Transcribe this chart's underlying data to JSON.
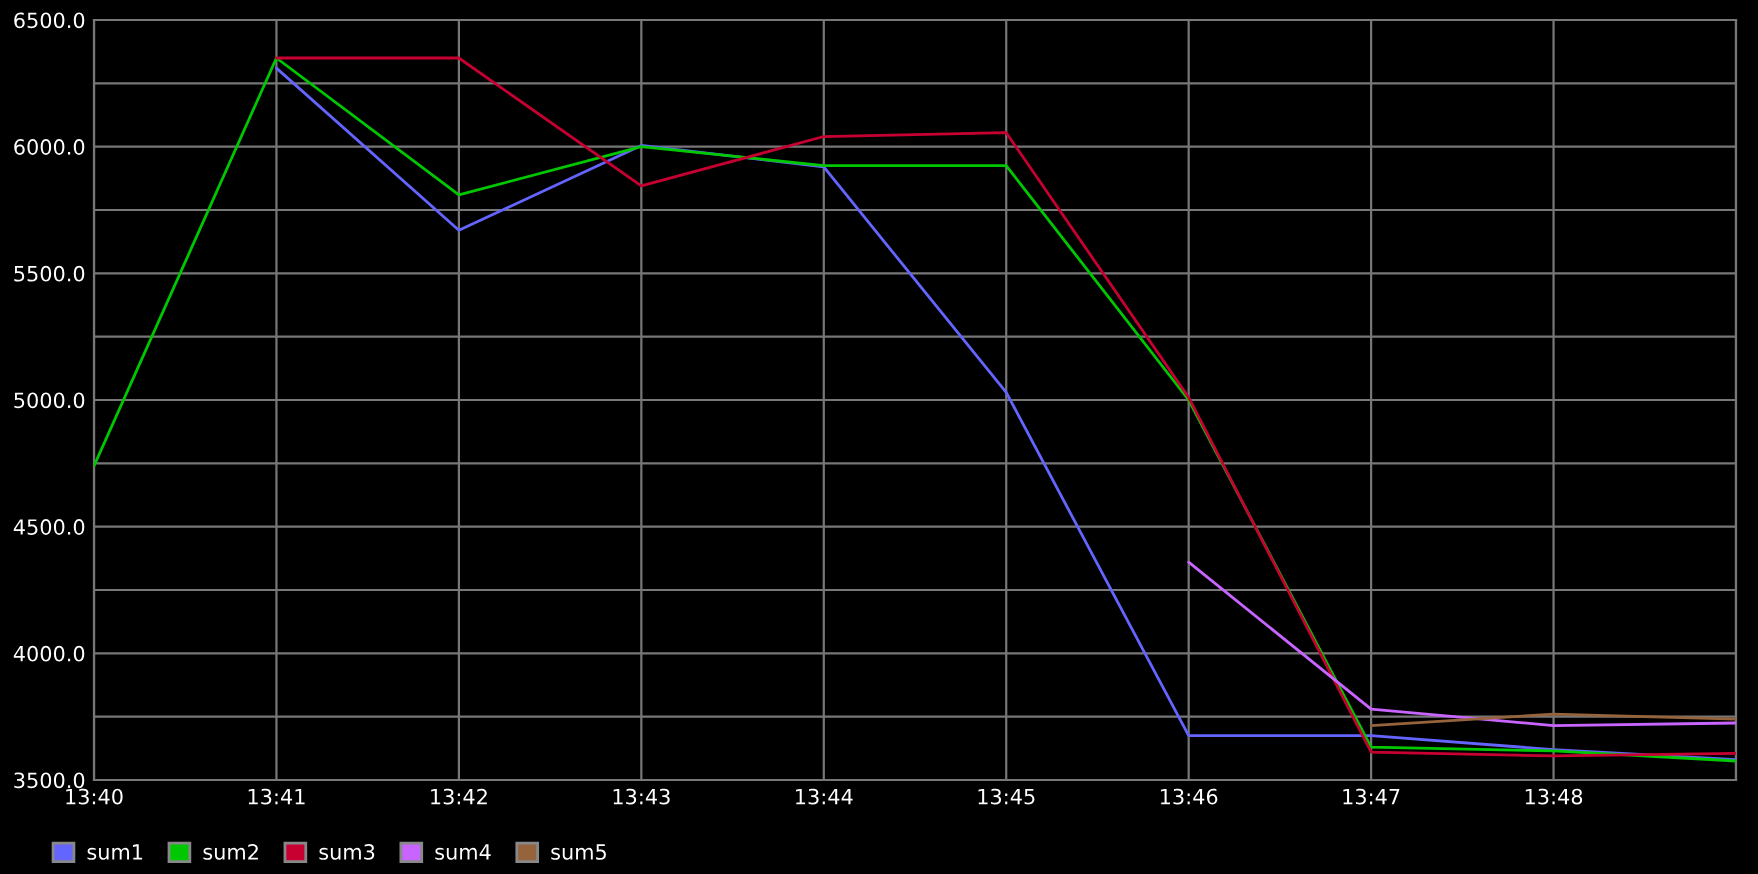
{
  "chart_data": {
    "type": "line",
    "categories": [
      "13:40",
      "13:41",
      "13:42",
      "13:43",
      "13:44",
      "13:45",
      "13:46",
      "13:47",
      "13:48",
      null
    ],
    "series": [
      {
        "name": "sum1",
        "color": "#6464ff",
        "values": [
          null,
          6310,
          5670,
          6005,
          5920,
          5030,
          3675,
          3675,
          3620,
          3580
        ]
      },
      {
        "name": "sum2",
        "color": "#00c800",
        "values": [
          4740,
          6350,
          5810,
          6000,
          5925,
          5925,
          5000,
          3630,
          3615,
          3575
        ]
      },
      {
        "name": "sum3",
        "color": "#c80032",
        "values": [
          null,
          6350,
          6350,
          5845,
          6040,
          6055,
          5010,
          3610,
          3595,
          3605
        ]
      },
      {
        "name": "sum4",
        "color": "#c864ff",
        "values": [
          null,
          null,
          null,
          null,
          null,
          null,
          4360,
          3780,
          3715,
          3725
        ]
      },
      {
        "name": "sum5",
        "color": "#96643c",
        "values": [
          null,
          null,
          null,
          null,
          null,
          null,
          null,
          3715,
          3760,
          3740
        ]
      }
    ],
    "ylim": [
      3500,
      6500
    ],
    "yticks": [
      {
        "value": 3500,
        "label": "3500.0"
      },
      {
        "value": 3750,
        "label": null
      },
      {
        "value": 4000,
        "label": "4000.0"
      },
      {
        "value": 4250,
        "label": null
      },
      {
        "value": 4500,
        "label": "4500.0"
      },
      {
        "value": 4750,
        "label": null
      },
      {
        "value": 5000,
        "label": "5000.0"
      },
      {
        "value": 5250,
        "label": null
      },
      {
        "value": 5500,
        "label": "5500.0"
      },
      {
        "value": 5750,
        "label": null
      },
      {
        "value": 6000,
        "label": "6000.0"
      },
      {
        "value": 6250,
        "label": null
      },
      {
        "value": 6500,
        "label": "6500.0"
      }
    ],
    "grid": true,
    "legend": "bottom",
    "marker": "none",
    "line_style": "solid"
  }
}
